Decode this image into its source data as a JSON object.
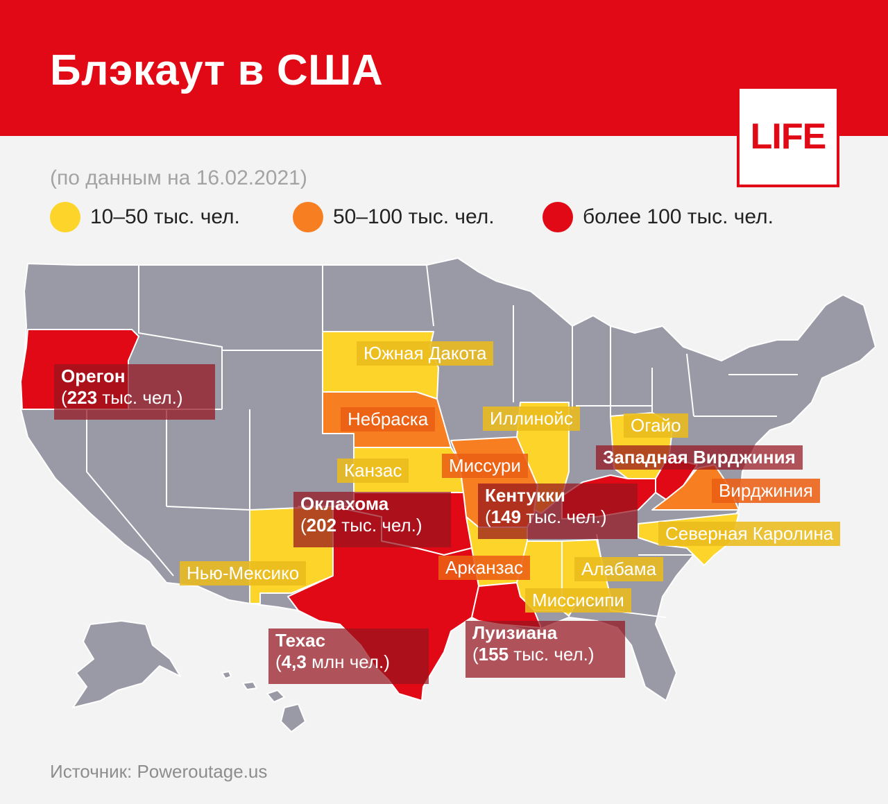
{
  "header": {
    "title": "Блэкаут в США",
    "logo_text": "LIFE"
  },
  "subtitle": "(по данным на 16.02.2021)",
  "legend": [
    {
      "label": "10–50 тыс. чел.",
      "color": "#fdd52a"
    },
    {
      "label": "50–100 тыс. чел.",
      "color": "#f77f22"
    },
    {
      "label": "более 100 тыс. чел.",
      "color": "#e10915"
    }
  ],
  "colors": {
    "header": "#e10915",
    "other_states": "#9a9aa6",
    "tier_low": "#fdd52a",
    "tier_mid": "#f77f22",
    "tier_high": "#e10915",
    "background": "#f3f3f3"
  },
  "labels": {
    "oregon": {
      "name": "Орегон",
      "count": "223",
      "unit": "тыс. чел.)"
    },
    "south_dakota": "Южная Дакота",
    "nebraska": "Небраска",
    "kansas": "Канзас",
    "missouri": "Миссури",
    "illinois": "Иллинойс",
    "ohio": "Огайо",
    "west_virginia": "Западная Вирджиния",
    "virginia": "Вирджиния",
    "kentucky": {
      "name": "Кентукки",
      "count": "149",
      "unit": "тыс. чел.)"
    },
    "north_carolina": "Северная Каролина",
    "oklahoma": {
      "name": "Оклахома",
      "count": "202",
      "unit": "тыс. чел.)"
    },
    "arkansas": "Арканзас",
    "alabama": "Алабама",
    "mississippi": "Миссисипи",
    "new_mexico": "Нью-Мексико",
    "texas": {
      "name": "Техас",
      "count": "4,3",
      "unit": "млн чел.)"
    },
    "louisiana": {
      "name": "Луизиана",
      "count": "155",
      "unit": "тыс. чел.)"
    }
  },
  "source": "Источник: Poweroutage.us"
}
